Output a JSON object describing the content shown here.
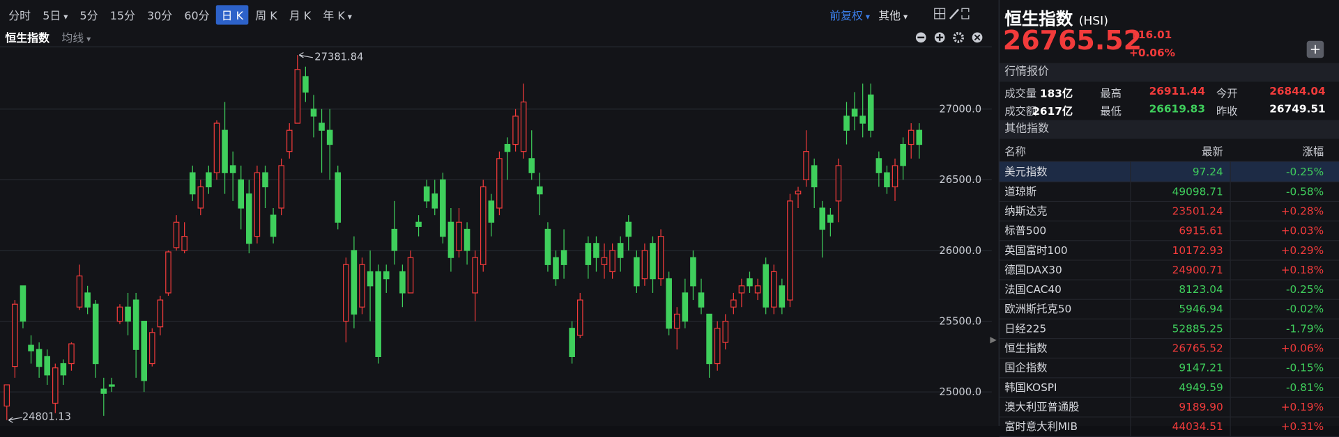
{
  "toolbar": {
    "items": [
      "分时",
      "5日",
      "5分",
      "15分",
      "30分",
      "60分",
      "日 K",
      "周 K",
      "月 K",
      "年 K"
    ],
    "right": [
      "前复权",
      "其他"
    ]
  },
  "chart_header": {
    "name": "恒生指数",
    "indicator": "均线"
  },
  "chart_data": {
    "type": "candlestick",
    "up_color": "#f23b3b",
    "down_color": "#3fcf5c",
    "grid": true,
    "ylim": [
      24790,
      27440
    ],
    "yticks": [
      {
        "value": 25000,
        "label": "25000.0"
      },
      {
        "value": 25500,
        "label": "25500.0"
      },
      {
        "value": 26000,
        "label": "26000.0"
      },
      {
        "value": 26500,
        "label": "26500.0"
      },
      {
        "value": 27000,
        "label": "27000.0"
      }
    ],
    "open": [
      24900,
      25180,
      25750,
      25330,
      25300,
      25250,
      24920,
      25200,
      25200,
      25600,
      25700,
      25620,
      25020,
      25050,
      25500,
      25600,
      25650,
      25500,
      25200,
      25460,
      25700,
      26020,
      26000,
      26550,
      26300,
      26550,
      26550,
      26850,
      26600,
      26500,
      26400,
      26100,
      26550,
      26250,
      26300,
      26700,
      26900,
      27230,
      27000,
      26900,
      26850,
      26550,
      25500,
      26000,
      25600,
      25850,
      25850,
      25850,
      26150,
      25850,
      25700,
      26200,
      26450,
      26400,
      26500,
      26200,
      26000,
      26150,
      25700,
      25900,
      26350,
      26300,
      26750,
      26750,
      26700,
      26650,
      26450,
      26150,
      25950,
      26000,
      25450,
      25400,
      26050,
      26050,
      25900,
      25850,
      26050,
      26200,
      25950,
      25800,
      26050,
      25800,
      25800,
      25450,
      25700,
      25950,
      25700,
      25550,
      25200,
      25350,
      25600,
      25700,
      25800,
      25700,
      25900,
      25600,
      25750,
      25650,
      26400,
      26500,
      26600,
      26300,
      26250,
      26350,
      26950,
      27000,
      26950,
      27100,
      26650,
      26550,
      26450,
      26750,
      26750,
      26850
    ],
    "high": [
      25050,
      25650,
      25750,
      25400,
      25350,
      25300,
      25200,
      25230,
      25350,
      25900,
      25750,
      25650,
      25100,
      25100,
      25620,
      25700,
      25700,
      25500,
      25450,
      25680,
      26000,
      26250,
      26200,
      26600,
      26500,
      26600,
      26920,
      27050,
      26700,
      26600,
      26500,
      26600,
      26600,
      26300,
      26650,
      26900,
      27381.84,
      27300,
      27100,
      27000,
      27000,
      26600,
      25950,
      26100,
      25950,
      26000,
      25900,
      25900,
      26350,
      25900,
      26000,
      26250,
      26500,
      26500,
      26550,
      26300,
      26300,
      26200,
      26000,
      26500,
      26400,
      26700,
      26800,
      27000,
      27180,
      26850,
      26550,
      26200,
      26000,
      26150,
      25500,
      25700,
      26100,
      26100,
      26050,
      26050,
      26100,
      26250,
      26000,
      26050,
      26100,
      26150,
      25850,
      25600,
      25800,
      26000,
      25800,
      25550,
      25500,
      25550,
      25700,
      25800,
      25850,
      25800,
      25950,
      25900,
      25800,
      26400,
      26450,
      26850,
      26650,
      26350,
      26300,
      26650,
      27050,
      27120,
      27180,
      27180,
      26700,
      26600,
      26650,
      26800,
      26900,
      26900
    ],
    "low": [
      24801.13,
      25100,
      25450,
      25200,
      25100,
      25050,
      24850,
      25050,
      25150,
      25580,
      25550,
      25100,
      24830,
      25000,
      25480,
      25400,
      25100,
      25000,
      25180,
      25400,
      25680,
      26000,
      25980,
      26350,
      26250,
      26400,
      26500,
      26400,
      26350,
      26150,
      25980,
      26050,
      26300,
      26050,
      26250,
      26650,
      26900,
      27050,
      26800,
      26550,
      26500,
      26150,
      25350,
      25450,
      25550,
      25500,
      25200,
      25700,
      25900,
      25600,
      25700,
      26100,
      26300,
      26250,
      26050,
      25850,
      25950,
      25900,
      25500,
      25850,
      26100,
      26250,
      26500,
      26700,
      26650,
      26500,
      26250,
      25850,
      25750,
      25800,
      25200,
      25380,
      25800,
      25850,
      25800,
      25800,
      25850,
      26000,
      25700,
      25750,
      25700,
      25750,
      25400,
      25300,
      25450,
      25650,
      25550,
      25100,
      25150,
      25300,
      25550,
      25600,
      25700,
      25650,
      25550,
      25550,
      25550,
      25600,
      26300,
      26450,
      26300,
      25950,
      26100,
      26200,
      26750,
      26850,
      26800,
      26800,
      26450,
      26400,
      26350,
      26500,
      26650,
      26650
    ],
    "close": [
      25050,
      25620,
      25500,
      25290,
      25180,
      25120,
      25170,
      25120,
      25340,
      25820,
      25600,
      25200,
      24990,
      25040,
      25600,
      25500,
      25300,
      25080,
      25420,
      25650,
      25990,
      26200,
      26100,
      26400,
      26450,
      26450,
      26900,
      26550,
      26550,
      26300,
      26050,
      26550,
      26450,
      26100,
      26600,
      26850,
      27280,
      27120,
      26950,
      26850,
      26750,
      26200,
      25900,
      25550,
      25900,
      25750,
      25250,
      25800,
      26000,
      25700,
      25950,
      26170,
      26350,
      26300,
      26100,
      25950,
      26200,
      26000,
      25950,
      26450,
      26200,
      26650,
      26700,
      26950,
      27050,
      26550,
      26400,
      25900,
      25800,
      25900,
      25250,
      25650,
      25900,
      25950,
      25950,
      26000,
      25950,
      26100,
      25750,
      26000,
      25800,
      26100,
      25450,
      25550,
      25500,
      25750,
      25600,
      25200,
      25450,
      25500,
      25650,
      25750,
      25750,
      25750,
      25600,
      25850,
      25600,
      26350,
      26420,
      26700,
      26450,
      26150,
      26200,
      26600,
      26850,
      26950,
      26900,
      26850,
      26550,
      26450,
      26600,
      26600,
      26850,
      26750
    ]
  },
  "quote": {
    "name": "恒生指数",
    "code": "(HSI)",
    "price": "26765.52",
    "change": "16.01",
    "change_pct": "+0.06%",
    "section": "行情报价",
    "rows": [
      [
        "成交量",
        "183亿",
        "最高",
        "26911.44",
        "今开",
        "26844.04"
      ],
      [
        "成交额",
        "2617亿",
        "最低",
        "26619.83",
        "昨收",
        "26749.51"
      ]
    ]
  },
  "indices": {
    "section": "其他指数",
    "header": [
      "名称",
      "最新",
      "涨幅"
    ],
    "rows": [
      [
        "美元指数",
        "97.24",
        "-0.25%"
      ],
      [
        "道琼斯",
        "49098.71",
        "-0.58%"
      ],
      [
        "纳斯达克",
        "23501.24",
        "+0.28%"
      ],
      [
        "标普500",
        "6915.61",
        "+0.03%"
      ],
      [
        "英国富时100",
        "10172.93",
        "+0.29%"
      ],
      [
        "德国DAX30",
        "24900.71",
        "+0.18%"
      ],
      [
        "法国CAC40",
        "8123.04",
        "-0.25%"
      ],
      [
        "欧洲斯托克50",
        "5946.94",
        "-0.02%"
      ],
      [
        "日经225",
        "52885.25",
        "-1.79%"
      ],
      [
        "恒生指数",
        "26765.52",
        "+0.06%"
      ],
      [
        "国企指数",
        "9147.21",
        "-0.15%"
      ],
      [
        "韩国KOSPI",
        "4949.59",
        "-0.81%"
      ],
      [
        "澳大利亚普通股",
        "9189.90",
        "+0.19%"
      ],
      [
        "富时意大利MIB",
        "44034.51",
        "+0.31%"
      ]
    ]
  }
}
